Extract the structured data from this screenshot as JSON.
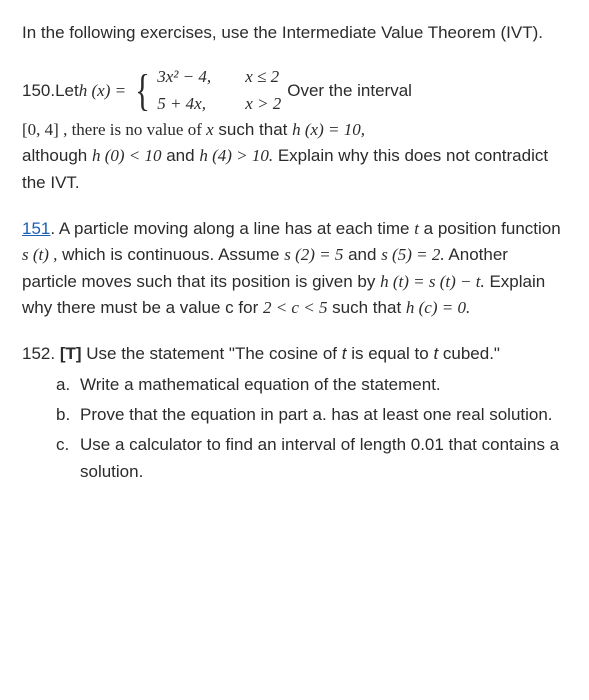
{
  "intro": "In the following exercises, use the Intermediate Value Theorem (IVT).",
  "p150": {
    "num": "150.",
    "let": " Let ",
    "hx": "h (x) = ",
    "case1_expr": "3x² − 4,",
    "case1_cond": "x ≤ 2",
    "case2_expr": "5 + 4x,",
    "case2_cond": "x > 2",
    "over": " Over the interval",
    "line2a": "[0, 4] , there is no value of ",
    "line2b": "x",
    "line2c": " such that ",
    "line2d": "h (x) = 10,",
    "line3a": "although ",
    "line3b": "h (0) < 10",
    "line3c": " and ",
    "line3d": "h (4) > 10.",
    "line3e": " Explain why this does not contradict the IVT."
  },
  "p151": {
    "numlink": "151",
    "period": ". ",
    "t1": "A particle moving along a line has at each time ",
    "t2": "t",
    "t3": " a position function ",
    "t4": "s (t) ,",
    "t5": " which is continuous. Assume ",
    "t6": "s (2) = 5",
    "t7": " and ",
    "t8": "s (5) = 2.",
    "t9": " Another particle moves such that its position is given by ",
    "t10": "h (t) = s (t) − t.",
    "t11": " Explain why there must be a value c for ",
    "t12": "2 < c < 5",
    "t13": " such that ",
    "t14": "h (c) = 0."
  },
  "p152": {
    "num": "152. ",
    "tag": "[T] ",
    "t1": "Use the statement \"The cosine of ",
    "t2": "t",
    "t3": " is equal to ",
    "t4": "t",
    "t5": " cubed.\"",
    "a_marker": "a.",
    "a": "Write a mathematical equation of the statement.",
    "b_marker": "b.",
    "b": "Prove that the equation in part a. has at least one real solution.",
    "c_marker": "c.",
    "c": "Use a calculator to find an interval of length 0.01 that contains a solution."
  }
}
